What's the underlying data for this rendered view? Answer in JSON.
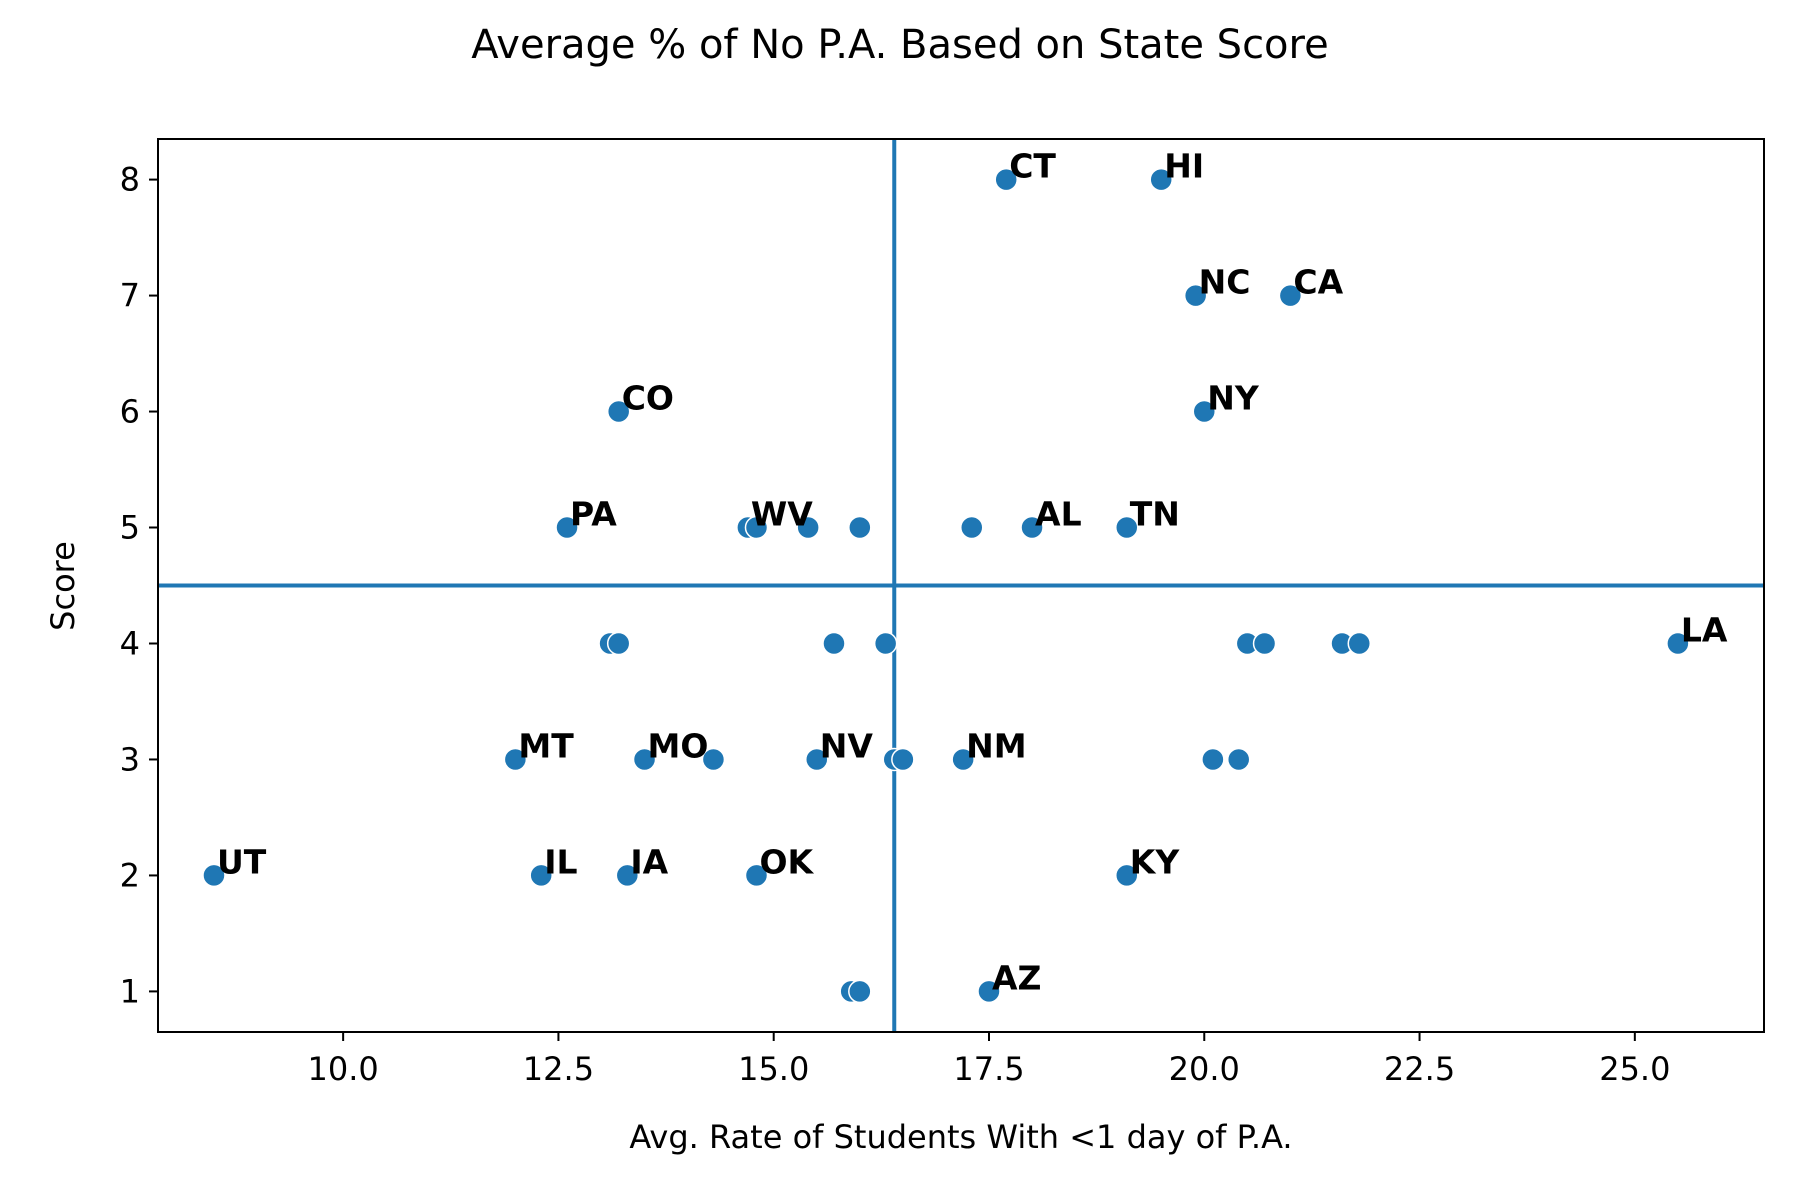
{
  "chart_data": {
    "type": "scatter",
    "title": "Average % of No P.A. Based on State Score",
    "xlabel": "Avg. Rate of Students With <1 day of P.A.",
    "ylabel": "Score",
    "xlim": [
      7.85,
      26.5
    ],
    "ylim": [
      0.65,
      8.35
    ],
    "xticks": [
      "10.0",
      "12.5",
      "15.0",
      "17.5",
      "20.0",
      "22.5",
      "25.0"
    ],
    "yticks": [
      "1",
      "2",
      "3",
      "4",
      "5",
      "6",
      "7",
      "8"
    ],
    "marker_color": "#1f77b4",
    "reference_lines": {
      "vertical_x": 16.4,
      "horizontal_y": 4.5,
      "color": "#1f77b4"
    },
    "grid": false,
    "points": [
      {
        "x": 17.7,
        "y": 8,
        "label": "CT"
      },
      {
        "x": 19.5,
        "y": 8,
        "label": "HI"
      },
      {
        "x": 19.9,
        "y": 7,
        "label": "NC"
      },
      {
        "x": 21.0,
        "y": 7,
        "label": "CA"
      },
      {
        "x": 13.2,
        "y": 6,
        "label": "CO"
      },
      {
        "x": 20.0,
        "y": 6,
        "label": "NY"
      },
      {
        "x": 12.6,
        "y": 5,
        "label": "PA"
      },
      {
        "x": 14.7,
        "y": 5,
        "label": "WV"
      },
      {
        "x": 14.8,
        "y": 5,
        "label": ""
      },
      {
        "x": 15.4,
        "y": 5,
        "label": ""
      },
      {
        "x": 16.0,
        "y": 5,
        "label": ""
      },
      {
        "x": 17.3,
        "y": 5,
        "label": ""
      },
      {
        "x": 18.0,
        "y": 5,
        "label": "AL"
      },
      {
        "x": 19.1,
        "y": 5,
        "label": "TN"
      },
      {
        "x": 13.1,
        "y": 4,
        "label": ""
      },
      {
        "x": 13.2,
        "y": 4,
        "label": ""
      },
      {
        "x": 15.7,
        "y": 4,
        "label": ""
      },
      {
        "x": 16.3,
        "y": 4,
        "label": ""
      },
      {
        "x": 20.5,
        "y": 4,
        "label": ""
      },
      {
        "x": 20.7,
        "y": 4,
        "label": ""
      },
      {
        "x": 21.6,
        "y": 4,
        "label": ""
      },
      {
        "x": 21.8,
        "y": 4,
        "label": ""
      },
      {
        "x": 25.5,
        "y": 4,
        "label": "LA"
      },
      {
        "x": 12.0,
        "y": 3,
        "label": "MT"
      },
      {
        "x": 13.5,
        "y": 3,
        "label": "MO"
      },
      {
        "x": 14.3,
        "y": 3,
        "label": ""
      },
      {
        "x": 15.5,
        "y": 3,
        "label": "NV"
      },
      {
        "x": 16.4,
        "y": 3,
        "label": ""
      },
      {
        "x": 16.5,
        "y": 3,
        "label": ""
      },
      {
        "x": 17.2,
        "y": 3,
        "label": "NM"
      },
      {
        "x": 20.1,
        "y": 3,
        "label": ""
      },
      {
        "x": 20.4,
        "y": 3,
        "label": ""
      },
      {
        "x": 8.5,
        "y": 2,
        "label": "UT"
      },
      {
        "x": 12.3,
        "y": 2,
        "label": "IL"
      },
      {
        "x": 13.3,
        "y": 2,
        "label": "IA"
      },
      {
        "x": 14.8,
        "y": 2,
        "label": "OK"
      },
      {
        "x": 19.1,
        "y": 2,
        "label": "KY"
      },
      {
        "x": 15.9,
        "y": 1,
        "label": ""
      },
      {
        "x": 16.0,
        "y": 1,
        "label": ""
      },
      {
        "x": 17.5,
        "y": 1,
        "label": "AZ"
      }
    ]
  }
}
